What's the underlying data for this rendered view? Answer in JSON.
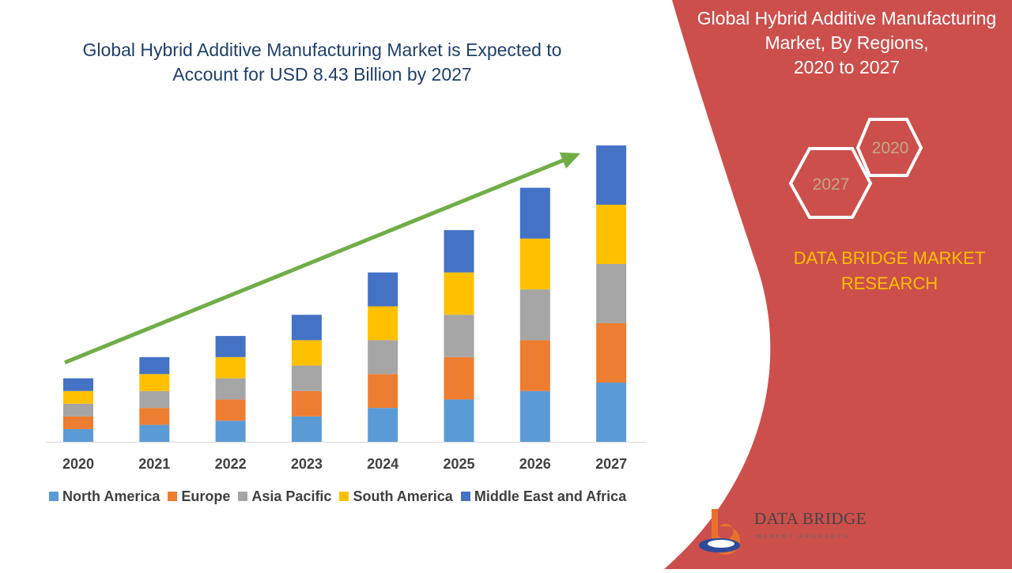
{
  "title": {
    "line1": "Global Hybrid Additive Manufacturing Market is Expected to",
    "line2": "Account for USD 8.43 Billion by 2027"
  },
  "panel": {
    "line1": "Global Hybrid Additive Manufacturing",
    "line2": "Market, By Regions,",
    "line3": "2020 to 2027",
    "hex_2020": "2020",
    "hex_2027": "2027",
    "brand_line1": "DATA BRIDGE MARKET",
    "brand_line2": "RESEARCH",
    "background_color": "#cc4f4c"
  },
  "logo": {
    "name": "DATA BRIDGE",
    "subtitle": "MARKET RESEARCH",
    "icon": "data-bridge-b-logo-icon"
  },
  "chart_data": {
    "type": "bar",
    "stacked": true,
    "categories": [
      "2020",
      "2021",
      "2022",
      "2023",
      "2024",
      "2025",
      "2026",
      "2027"
    ],
    "series": [
      {
        "name": "North America",
        "color": "#5b9bd5",
        "values": [
          0.3,
          0.4,
          0.5,
          0.6,
          0.8,
          1.0,
          1.2,
          1.4
        ]
      },
      {
        "name": "Europe",
        "color": "#ed7d31",
        "values": [
          0.3,
          0.4,
          0.5,
          0.6,
          0.8,
          1.0,
          1.2,
          1.4
        ]
      },
      {
        "name": "Asia Pacific",
        "color": "#a5a5a5",
        "values": [
          0.3,
          0.4,
          0.5,
          0.6,
          0.8,
          1.0,
          1.2,
          1.4
        ]
      },
      {
        "name": "South America",
        "color": "#ffc000",
        "values": [
          0.3,
          0.4,
          0.5,
          0.6,
          0.8,
          1.0,
          1.2,
          1.4
        ]
      },
      {
        "name": "Middle East and Africa",
        "color": "#4472c4",
        "values": [
          0.3,
          0.4,
          0.5,
          0.6,
          0.8,
          1.0,
          1.2,
          1.4
        ]
      }
    ],
    "trend_arrow": true,
    "trend_color": "#70ad47",
    "legend_position": "bottom",
    "grid": false
  }
}
